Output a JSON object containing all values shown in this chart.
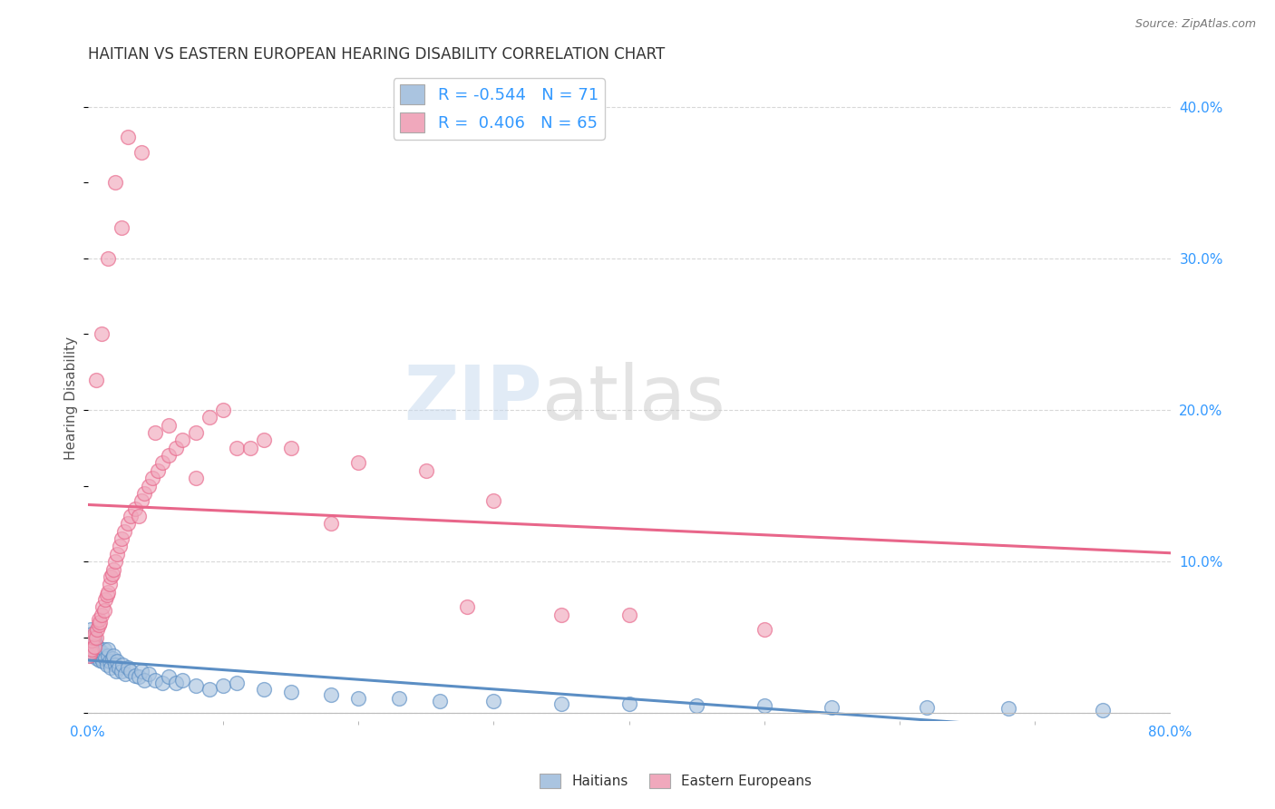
{
  "title": "HAITIAN VS EASTERN EUROPEAN HEARING DISABILITY CORRELATION CHART",
  "source": "Source: ZipAtlas.com",
  "ylabel": "Hearing Disability",
  "xlim": [
    0.0,
    0.8
  ],
  "ylim": [
    -0.005,
    0.42
  ],
  "yticks": [
    0.0,
    0.1,
    0.2,
    0.3,
    0.4
  ],
  "yticklabels": [
    "",
    "10.0%",
    "20.0%",
    "30.0%",
    "40.0%"
  ],
  "background_color": "#ffffff",
  "grid_color": "#d8d8d8",
  "blue_color": "#5b8ec4",
  "pink_color": "#e8668a",
  "blue_fill": "#aac4e0",
  "pink_fill": "#f0a8bc",
  "legend_R1": "-0.544",
  "legend_N1": "71",
  "legend_R2": "0.406",
  "legend_N2": "65",
  "label1": "Haitians",
  "label2": "Eastern Europeans",
  "watermark_zip": "ZIP",
  "watermark_atlas": "atlas",
  "title_fontsize": 12,
  "axis_label_fontsize": 11,
  "tick_fontsize": 11,
  "blue_scatter_x": [
    0.001,
    0.001,
    0.002,
    0.002,
    0.003,
    0.003,
    0.003,
    0.004,
    0.004,
    0.005,
    0.005,
    0.005,
    0.006,
    0.006,
    0.007,
    0.007,
    0.008,
    0.008,
    0.009,
    0.009,
    0.01,
    0.01,
    0.011,
    0.012,
    0.012,
    0.013,
    0.014,
    0.015,
    0.015,
    0.016,
    0.017,
    0.018,
    0.019,
    0.02,
    0.021,
    0.022,
    0.023,
    0.025,
    0.026,
    0.028,
    0.03,
    0.032,
    0.035,
    0.038,
    0.04,
    0.042,
    0.045,
    0.05,
    0.055,
    0.06,
    0.065,
    0.07,
    0.08,
    0.09,
    0.1,
    0.11,
    0.13,
    0.15,
    0.18,
    0.2,
    0.23,
    0.26,
    0.3,
    0.35,
    0.4,
    0.45,
    0.5,
    0.55,
    0.62,
    0.68,
    0.75
  ],
  "blue_scatter_y": [
    0.04,
    0.05,
    0.038,
    0.055,
    0.042,
    0.048,
    0.052,
    0.044,
    0.046,
    0.038,
    0.042,
    0.05,
    0.04,
    0.045,
    0.036,
    0.044,
    0.038,
    0.042,
    0.035,
    0.04,
    0.036,
    0.04,
    0.034,
    0.038,
    0.042,
    0.036,
    0.032,
    0.038,
    0.042,
    0.034,
    0.03,
    0.036,
    0.038,
    0.032,
    0.028,
    0.034,
    0.03,
    0.028,
    0.032,
    0.026,
    0.03,
    0.028,
    0.025,
    0.024,
    0.028,
    0.022,
    0.026,
    0.022,
    0.02,
    0.024,
    0.02,
    0.022,
    0.018,
    0.016,
    0.018,
    0.02,
    0.016,
    0.014,
    0.012,
    0.01,
    0.01,
    0.008,
    0.008,
    0.006,
    0.006,
    0.005,
    0.005,
    0.004,
    0.004,
    0.003,
    0.002
  ],
  "pink_scatter_x": [
    0.001,
    0.002,
    0.003,
    0.003,
    0.004,
    0.005,
    0.005,
    0.006,
    0.007,
    0.008,
    0.008,
    0.009,
    0.01,
    0.011,
    0.012,
    0.013,
    0.014,
    0.015,
    0.016,
    0.017,
    0.018,
    0.019,
    0.02,
    0.022,
    0.024,
    0.025,
    0.027,
    0.03,
    0.032,
    0.035,
    0.038,
    0.04,
    0.042,
    0.045,
    0.048,
    0.052,
    0.055,
    0.06,
    0.065,
    0.07,
    0.08,
    0.09,
    0.1,
    0.11,
    0.13,
    0.15,
    0.2,
    0.25,
    0.3,
    0.35,
    0.006,
    0.01,
    0.015,
    0.02,
    0.025,
    0.03,
    0.04,
    0.05,
    0.06,
    0.08,
    0.12,
    0.18,
    0.28,
    0.4,
    0.5
  ],
  "pink_scatter_y": [
    0.038,
    0.04,
    0.042,
    0.048,
    0.05,
    0.044,
    0.052,
    0.05,
    0.055,
    0.058,
    0.062,
    0.06,
    0.065,
    0.07,
    0.068,
    0.075,
    0.078,
    0.08,
    0.085,
    0.09,
    0.092,
    0.095,
    0.1,
    0.105,
    0.11,
    0.115,
    0.12,
    0.125,
    0.13,
    0.135,
    0.13,
    0.14,
    0.145,
    0.15,
    0.155,
    0.16,
    0.165,
    0.17,
    0.175,
    0.18,
    0.185,
    0.195,
    0.2,
    0.175,
    0.18,
    0.175,
    0.165,
    0.16,
    0.14,
    0.065,
    0.22,
    0.25,
    0.3,
    0.35,
    0.32,
    0.38,
    0.37,
    0.185,
    0.19,
    0.155,
    0.175,
    0.125,
    0.07,
    0.065,
    0.055
  ]
}
